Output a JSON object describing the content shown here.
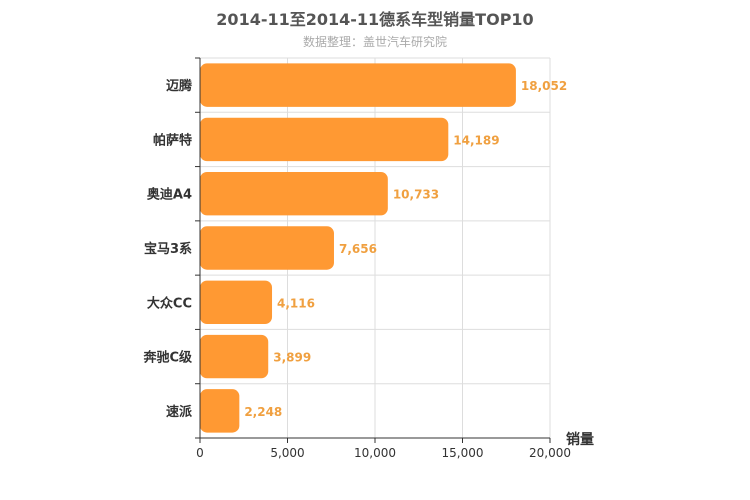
{
  "chart_data": {
    "type": "bar",
    "orientation": "horizontal",
    "title": "2014-11至2014-11德系车型销量TOP10",
    "subtitle": "数据整理：盖世汽车研究院",
    "categories": [
      "迈腾",
      "帕萨特",
      "奥迪A4",
      "宝马3系",
      "大众CC",
      "奔驰C级",
      "速派"
    ],
    "values": [
      18052,
      14189,
      10733,
      7656,
      4116,
      3899,
      2248
    ],
    "value_labels": [
      "18,052",
      "14,189",
      "10,733",
      "7,656",
      "4,116",
      "3,899",
      "2,248"
    ],
    "xlabel": "销量",
    "ylabel": "",
    "xlim": [
      0,
      20000
    ],
    "x_ticks": [
      0,
      5000,
      10000,
      15000,
      20000
    ],
    "x_tick_labels": [
      "0",
      "5,000",
      "10,000",
      "15,000",
      "20,000"
    ],
    "grid": true,
    "bar_color": "#ff9933"
  }
}
